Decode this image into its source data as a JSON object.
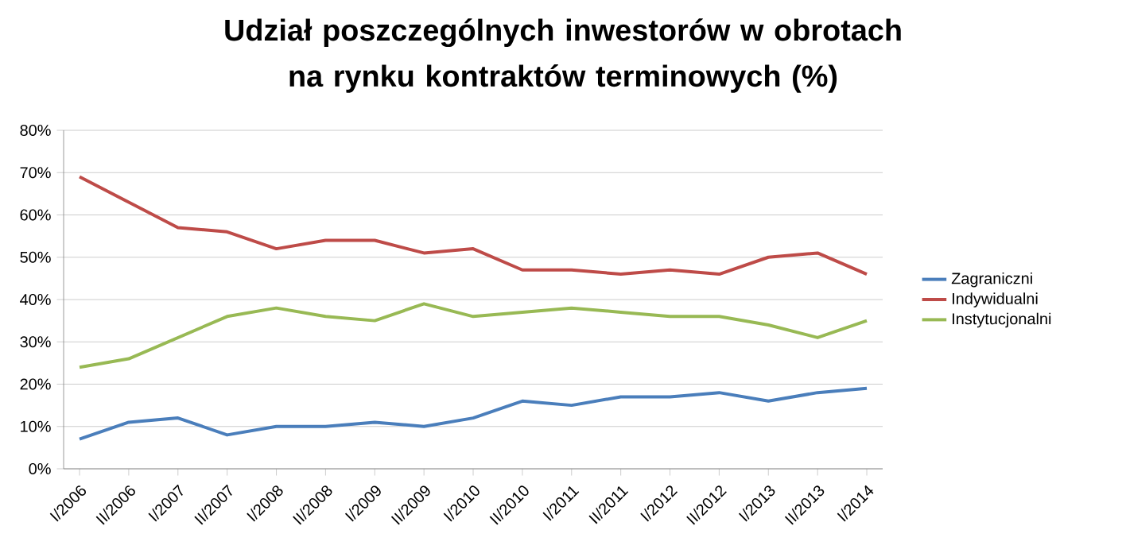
{
  "chart_data": {
    "type": "line",
    "title": "Udział poszczególnych inwestorów w obrotach na rynku kontraktów terminowych (%)",
    "categories": [
      "I/2006",
      "II/2006",
      "I/2007",
      "II/2007",
      "I/2008",
      "II/2008",
      "I/2009",
      "II/2009",
      "I/2010",
      "II/2010",
      "I/2011",
      "II/2011",
      "I/2012",
      "II/2012",
      "I/2013",
      "II/2013",
      "I/2014"
    ],
    "series": [
      {
        "name": "Zagraniczni",
        "color": "#4a7ebb",
        "values": [
          7,
          11,
          12,
          8,
          10,
          10,
          11,
          10,
          12,
          16,
          15,
          17,
          17,
          18,
          16,
          18,
          19
        ]
      },
      {
        "name": "Indywidualni",
        "color": "#be4b48",
        "values": [
          69,
          63,
          57,
          56,
          52,
          54,
          54,
          51,
          52,
          47,
          47,
          46,
          47,
          46,
          50,
          51,
          46
        ]
      },
      {
        "name": "Instytucjonalni",
        "color": "#98b954",
        "values": [
          24,
          26,
          31,
          36,
          38,
          36,
          35,
          39,
          36,
          37,
          38,
          37,
          36,
          36,
          34,
          31,
          35
        ]
      }
    ],
    "ylim": [
      0,
      80
    ],
    "yticks": [
      {
        "value": 0,
        "label": "0%"
      },
      {
        "value": 10,
        "label": "10%"
      },
      {
        "value": 20,
        "label": "20%"
      },
      {
        "value": 30,
        "label": "30%"
      },
      {
        "value": 40,
        "label": "40%"
      },
      {
        "value": 50,
        "label": "50%"
      },
      {
        "value": 60,
        "label": "60%"
      },
      {
        "value": 70,
        "label": "70%"
      },
      {
        "value": 80,
        "label": "80%"
      }
    ],
    "grid": "y",
    "legend": "right"
  }
}
